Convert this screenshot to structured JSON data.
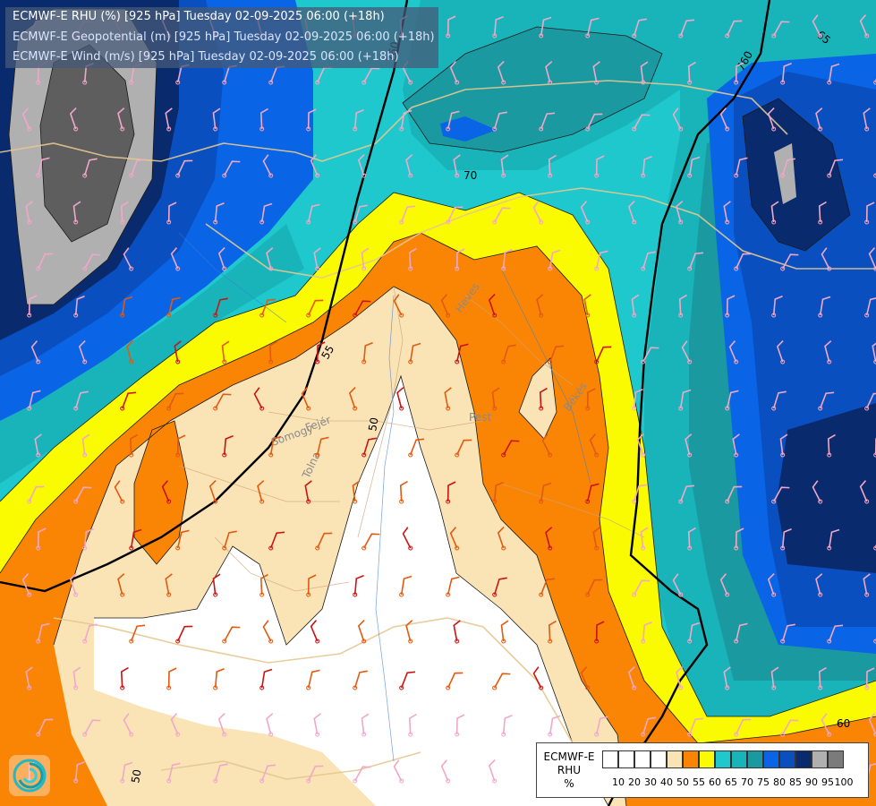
{
  "titles": {
    "line1": "ECMWF-E RHU (%) [925 hPa] Tuesday 02-09-2025 06:00 (+18h)",
    "line2": "ECMWF-E Geopotential (m) [925 hPa] Tuesday 02-09-2025 06:00 (+18h)",
    "line3": "ECMWF-E Wind (m/s) [925 hPa] Tuesday 02-09-2025 06:00 (+18h)"
  },
  "legend": {
    "label_lines": [
      "ECMWF-E",
      "RHU",
      "%"
    ],
    "swatch_colors": [
      "#ffffff",
      "#ffffff",
      "#ffffff",
      "#ffffff",
      "#fae3b5",
      "#fa8505",
      "#fafa00",
      "#1ec8cc",
      "#19b4b9",
      "#1a99a0",
      "#0a64e6",
      "#0a4fc0",
      "#0a2a6e",
      "#b0b0b0",
      "#7b7b7b"
    ],
    "ticks": [
      "10",
      "20",
      "30",
      "40",
      "50",
      "55",
      "60",
      "65",
      "70",
      "75",
      "80",
      "85",
      "90",
      "95",
      "100"
    ]
  },
  "contour_labels": {
    "c760_top": "760",
    "c760_right": "760",
    "c65": "65",
    "c70": "70",
    "c55": "55",
    "c50": "50",
    "c60": "60",
    "c50_bottom": "50"
  },
  "place_labels": {
    "heves": "Heves",
    "pest": "Pest",
    "bekes": "Békés",
    "somogy": "Somogy",
    "tolna": "Tolna",
    "fejer": "Fejér"
  },
  "colors": {
    "white_zone": "#ffffff",
    "cream": "#fae3b5",
    "orange": "#fa8505",
    "yellow": "#fafa00",
    "cyan": "#1ec8cc",
    "teal": "#19b4b9",
    "dark_teal": "#1a99a0",
    "blue": "#0a64e6",
    "mid_blue": "#0a4fc0",
    "navy": "#0a2a6e",
    "light_gray": "#b0b0b0",
    "dark_gray": "#5e5e5e"
  }
}
